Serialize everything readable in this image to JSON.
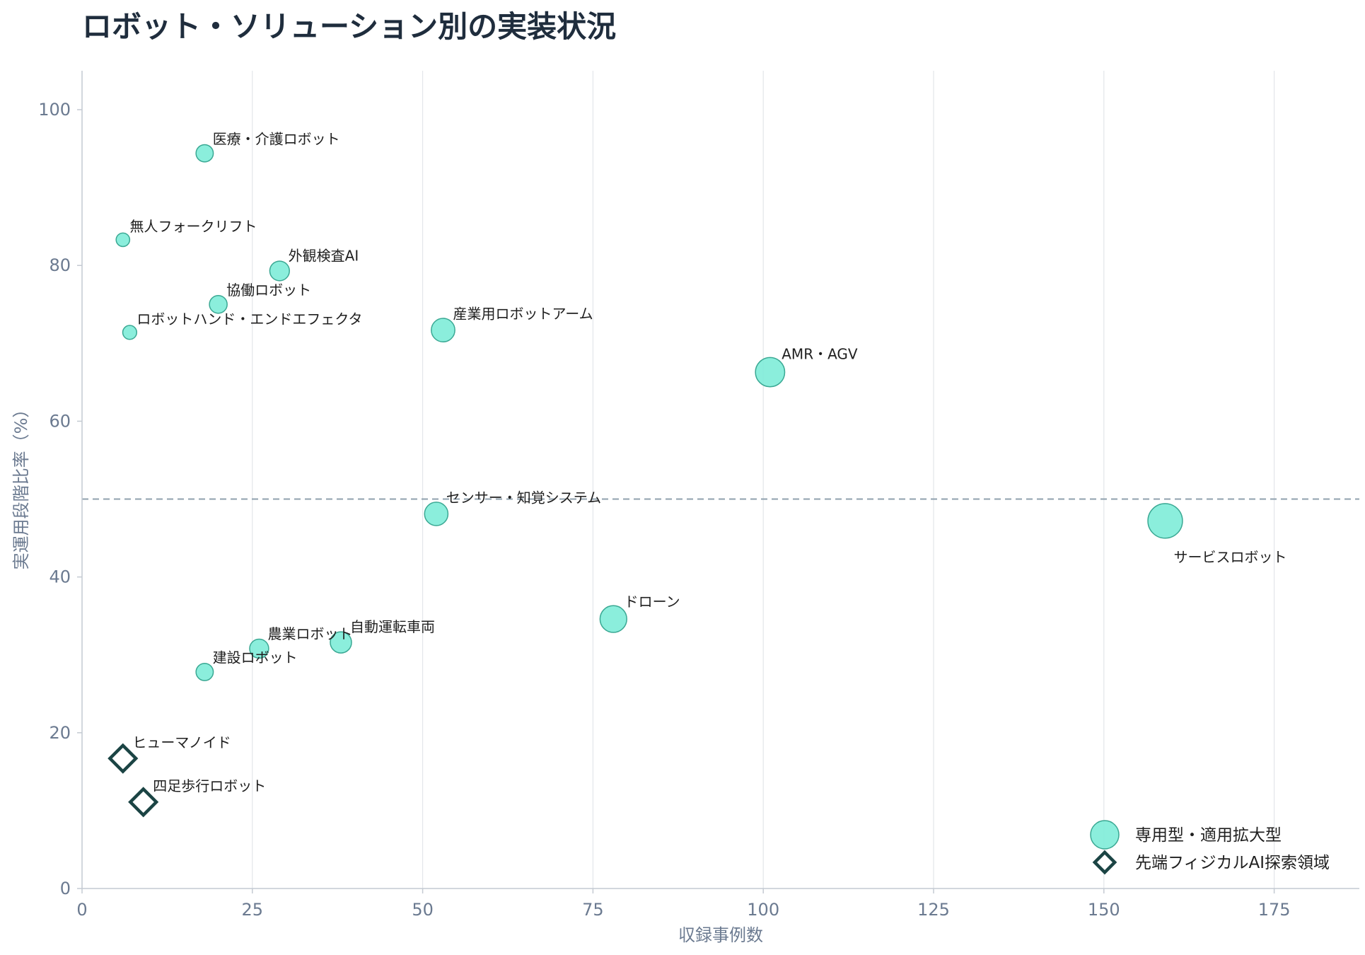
{
  "chart_data": {
    "type": "scatter",
    "title": "ロボット・ソリューション別の実装状況",
    "xlabel": "収録事例数",
    "ylabel": "実運用段階比率（%）",
    "xlim": [
      0,
      187.5
    ],
    "ylim": [
      0,
      105
    ],
    "x_ticks": [
      0,
      25,
      50,
      75,
      100,
      125,
      150,
      175
    ],
    "y_ticks": [
      0,
      20,
      40,
      60,
      80,
      100
    ],
    "reference_line_y": 50,
    "grid": "vertical",
    "legend_position": "bottom-right",
    "colors": {
      "bubble_fill": "#7eecd8",
      "bubble_stroke": "#3aa893",
      "diamond_stroke": "#1b4444",
      "reference_line": "#8fa0ad",
      "grid": "#e3e6ea"
    },
    "series": [
      {
        "name": "専用型・適用拡大型",
        "marker": "circle",
        "points": [
          {
            "label": "医療・介護ロボット",
            "x": 18,
            "y": 94.4
          },
          {
            "label": "無人フォークリフト",
            "x": 6,
            "y": 83.3
          },
          {
            "label": "外観検査AI",
            "x": 29,
            "y": 79.3
          },
          {
            "label": "協働ロボット",
            "x": 20,
            "y": 75.0
          },
          {
            "label": "ロボットハンド・エンドエフェクタ",
            "x": 7,
            "y": 71.4
          },
          {
            "label": "産業用ロボットアーム",
            "x": 53,
            "y": 71.7
          },
          {
            "label": "AMR・AGV",
            "x": 101,
            "y": 66.3
          },
          {
            "label": "センサー・知覚システム",
            "x": 52,
            "y": 48.1
          },
          {
            "label": "サービスロボット",
            "x": 159,
            "y": 47.2
          },
          {
            "label": "ドローン",
            "x": 78,
            "y": 34.6
          },
          {
            "label": "自動運転車両",
            "x": 38,
            "y": 31.6
          },
          {
            "label": "農業ロボット",
            "x": 26,
            "y": 30.8
          },
          {
            "label": "建設ロボット",
            "x": 18,
            "y": 27.8
          }
        ]
      },
      {
        "name": "先端フィジカルAI探索領域",
        "marker": "diamond",
        "points": [
          {
            "label": "ヒューマノイド",
            "x": 6,
            "y": 16.7
          },
          {
            "label": "四足歩行ロボット",
            "x": 9,
            "y": 11.1
          }
        ]
      }
    ]
  }
}
